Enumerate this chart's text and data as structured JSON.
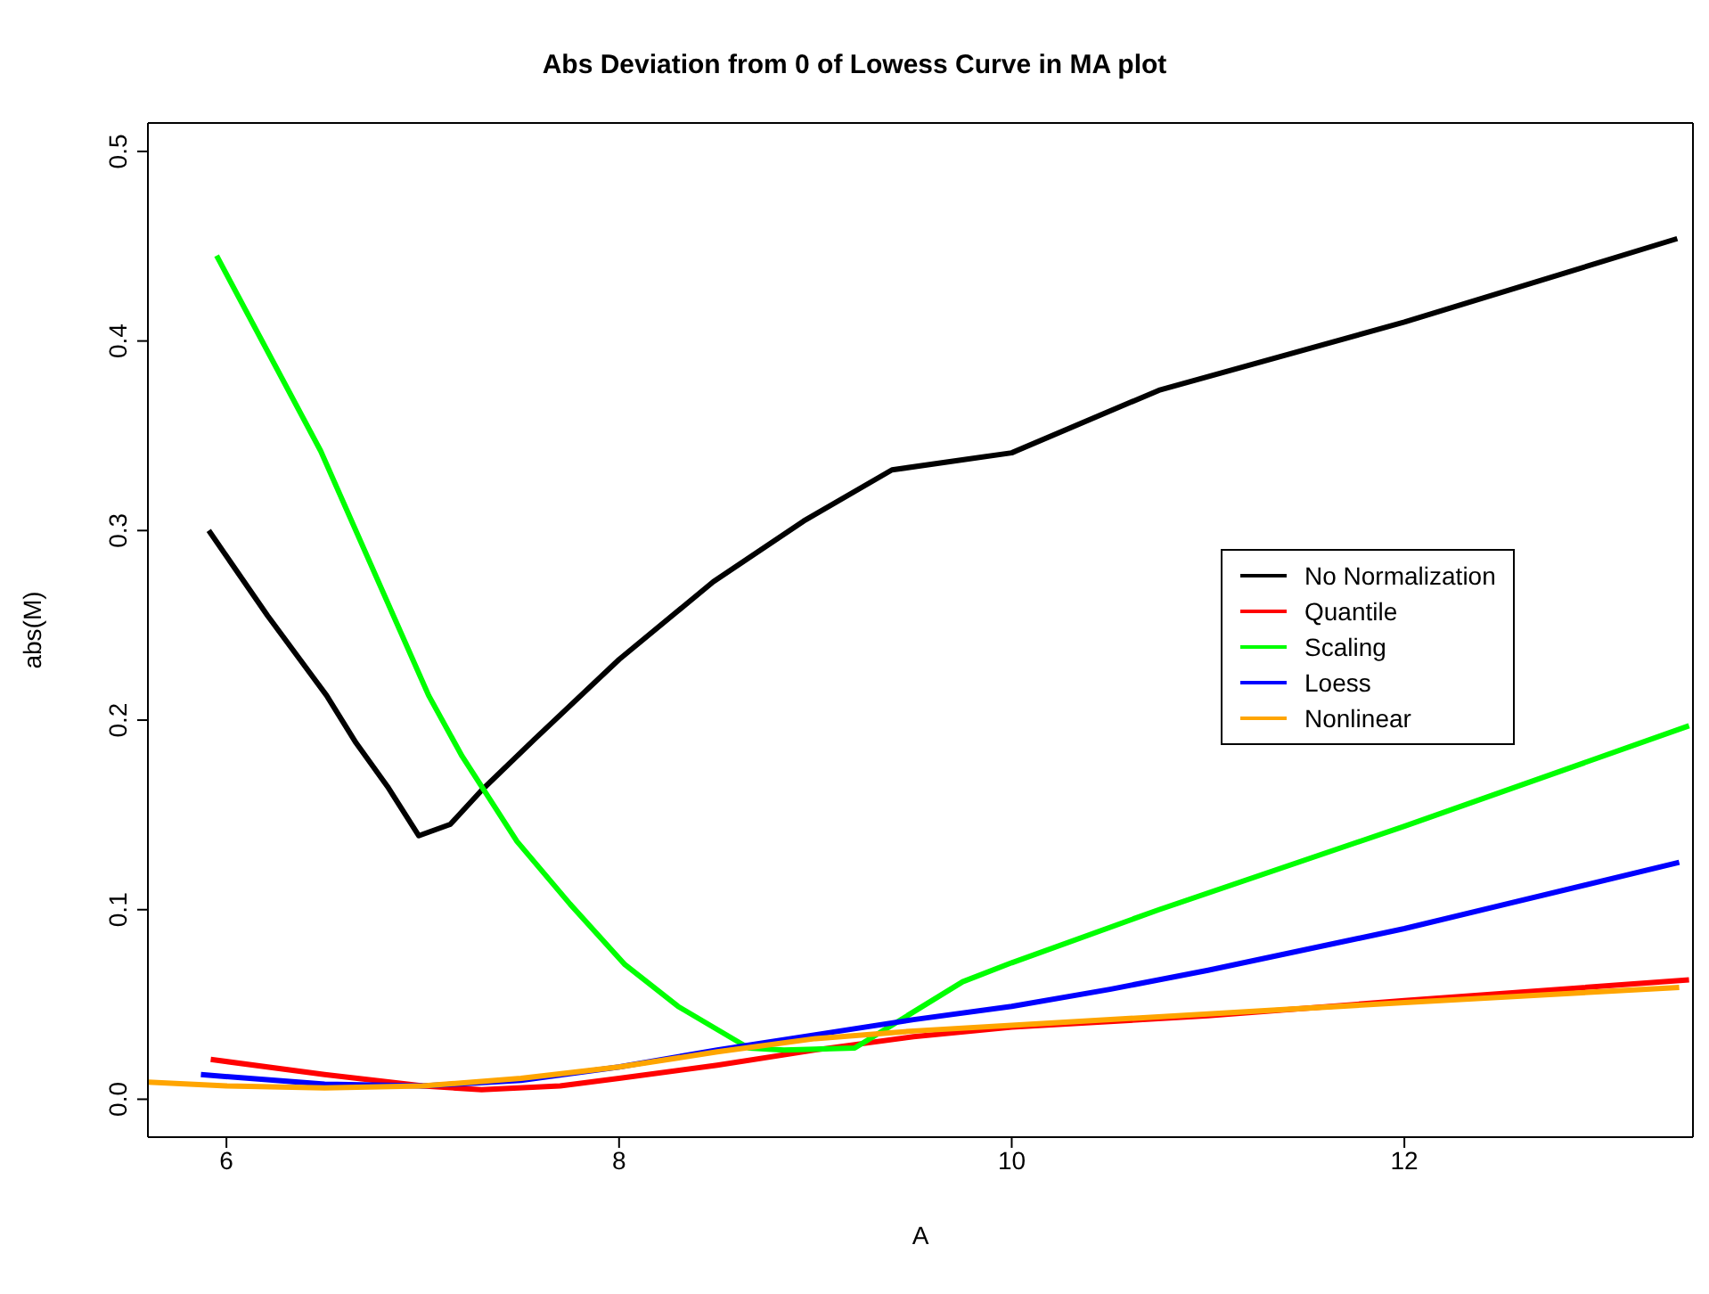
{
  "chart_data": {
    "type": "line",
    "title": "Abs Deviation from 0 of Lowess Curve in MA plot",
    "xlabel": "A",
    "ylabel": "abs(M)",
    "xlim": [
      5.6,
      13.47
    ],
    "ylim": [
      -0.02,
      0.515
    ],
    "xticks": [
      6,
      8,
      10,
      12
    ],
    "yticks": [
      {
        "value": 0,
        "label": "0.0"
      },
      0.1,
      0.2,
      0.3,
      0.4,
      0.5
    ],
    "grid": false,
    "legend": "right",
    "marker": "none",
    "line_style": "solid",
    "series": [
      {
        "name": "No Normalization",
        "color": "#000000",
        "x": [
          5.91,
          6.21,
          6.51,
          6.66,
          6.82,
          6.98,
          7.14,
          7.3,
          7.57,
          8.0,
          8.48,
          8.94,
          9.39,
          10.0,
          10.75,
          12.0,
          13.39
        ],
        "values": [
          0.3,
          0.255,
          0.213,
          0.188,
          0.165,
          0.139,
          0.145,
          0.163,
          0.19,
          0.232,
          0.273,
          0.305,
          0.332,
          0.341,
          0.374,
          0.41,
          0.454
        ]
      },
      {
        "name": "Quantile",
        "color": "#ff0000",
        "x": [
          5.92,
          6.5,
          7.0,
          7.3,
          7.7,
          8.0,
          8.5,
          9.0,
          9.5,
          10.0,
          11.0,
          12.0,
          13.45
        ],
        "values": [
          0.021,
          0.013,
          0.007,
          0.005,
          0.007,
          0.011,
          0.018,
          0.026,
          0.033,
          0.038,
          0.044,
          0.052,
          0.063
        ]
      },
      {
        "name": "Scaling",
        "color": "#00ff00",
        "x": [
          5.95,
          6.48,
          7.03,
          7.2,
          7.48,
          7.75,
          8.03,
          8.3,
          8.66,
          8.84,
          9.2,
          9.75,
          10.0,
          10.75,
          12.0,
          13.45
        ],
        "values": [
          0.445,
          0.342,
          0.213,
          0.181,
          0.136,
          0.103,
          0.071,
          0.049,
          0.027,
          0.026,
          0.027,
          0.062,
          0.072,
          0.1,
          0.144,
          0.197
        ]
      },
      {
        "name": "Loess",
        "color": "#0000ff",
        "x": [
          5.87,
          6.5,
          7.0,
          7.5,
          8.0,
          8.5,
          9.0,
          9.5,
          10.0,
          10.5,
          11.0,
          12.0,
          13.4
        ],
        "values": [
          0.013,
          0.008,
          0.007,
          0.01,
          0.017,
          0.026,
          0.034,
          0.042,
          0.049,
          0.058,
          0.068,
          0.09,
          0.125
        ]
      },
      {
        "name": "Nonlinear",
        "color": "#ffa500",
        "x": [
          5.6,
          6.0,
          6.5,
          7.0,
          7.5,
          8.0,
          8.5,
          9.0,
          9.5,
          10.0,
          11.0,
          12.0,
          13.4
        ],
        "values": [
          0.009,
          0.007,
          0.006,
          0.007,
          0.011,
          0.017,
          0.025,
          0.032,
          0.036,
          0.039,
          0.045,
          0.051,
          0.059
        ]
      }
    ]
  }
}
